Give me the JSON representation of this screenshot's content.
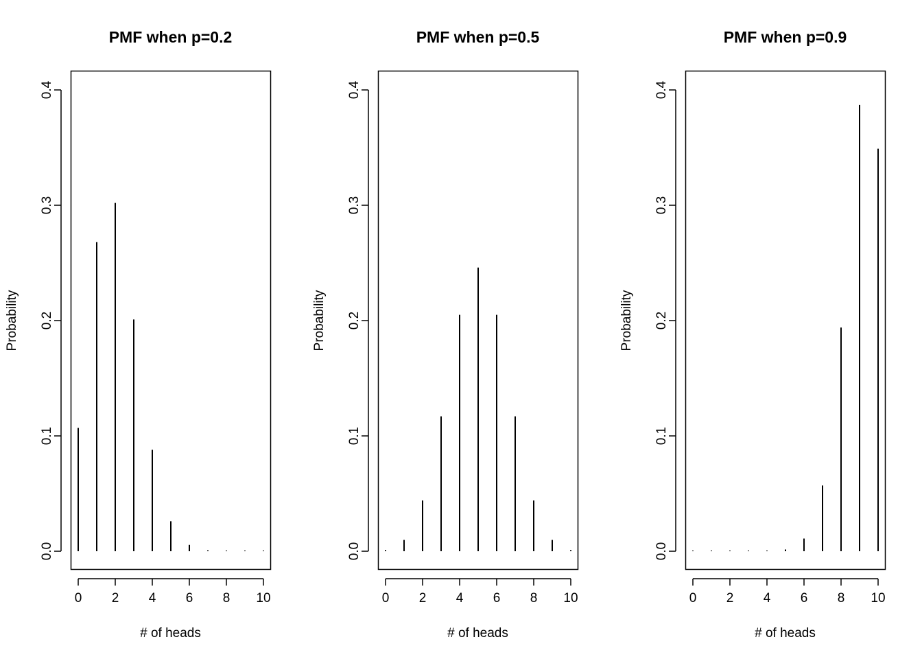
{
  "chart_data": [
    {
      "type": "bar",
      "title": "PMF when p=0.2",
      "xlabel": "# of heads",
      "ylabel": "Probability",
      "x": [
        0,
        1,
        2,
        3,
        4,
        5,
        6,
        7,
        8,
        9,
        10
      ],
      "values": [
        0.107,
        0.268,
        0.302,
        0.201,
        0.088,
        0.026,
        0.0055,
        0.0008,
        0.0001,
        0.0,
        0.0
      ],
      "xticks": [
        "0",
        "2",
        "4",
        "6",
        "8",
        "10"
      ],
      "yticks": [
        "0.0",
        "0.1",
        "0.2",
        "0.3",
        "0.4"
      ],
      "xlim": [
        0,
        10
      ],
      "ylim": [
        0,
        0.4
      ],
      "grid": false
    },
    {
      "type": "bar",
      "title": "PMF when p=0.5",
      "xlabel": "# of heads",
      "ylabel": "Probability",
      "x": [
        0,
        1,
        2,
        3,
        4,
        5,
        6,
        7,
        8,
        9,
        10
      ],
      "values": [
        0.001,
        0.0098,
        0.044,
        0.117,
        0.205,
        0.246,
        0.205,
        0.117,
        0.044,
        0.0098,
        0.001
      ],
      "xticks": [
        "0",
        "2",
        "4",
        "6",
        "8",
        "10"
      ],
      "yticks": [
        "0.0",
        "0.1",
        "0.2",
        "0.3",
        "0.4"
      ],
      "xlim": [
        0,
        10
      ],
      "ylim": [
        0,
        0.4
      ],
      "grid": false
    },
    {
      "type": "bar",
      "title": "PMF when p=0.9",
      "xlabel": "# of heads",
      "ylabel": "Probability",
      "x": [
        0,
        1,
        2,
        3,
        4,
        5,
        6,
        7,
        8,
        9,
        10
      ],
      "values": [
        0.0,
        0.0,
        0.0,
        0.0,
        0.0001,
        0.0015,
        0.011,
        0.057,
        0.194,
        0.387,
        0.349
      ],
      "xticks": [
        "0",
        "2",
        "4",
        "6",
        "8",
        "10"
      ],
      "yticks": [
        "0.0",
        "0.1",
        "0.2",
        "0.3",
        "0.4"
      ],
      "xlim": [
        0,
        10
      ],
      "ylim": [
        0,
        0.4
      ],
      "grid": false
    }
  ]
}
